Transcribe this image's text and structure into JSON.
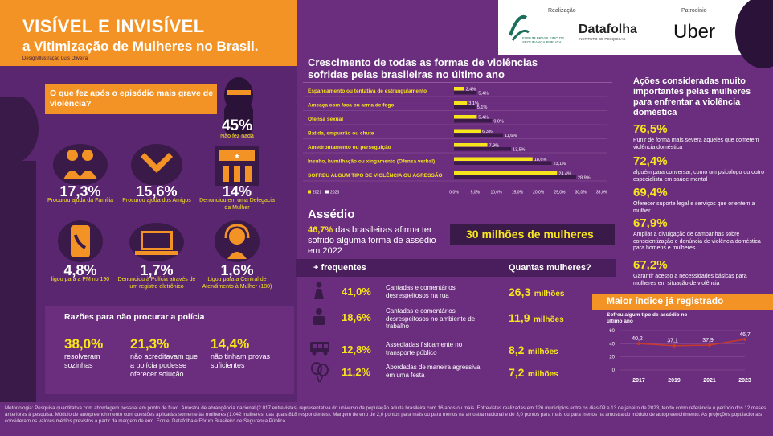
{
  "header": {
    "title1": "VISÍVEL E INVISÍVEL",
    "title2": "a Vitimização de Mulheres no Brasil.",
    "credit": "Design/Ilustração Luis Oliveira"
  },
  "logos": {
    "realizacao_label": "Realização",
    "fbsp_name": "FÓRUM BRASILEIRO DE SEGURANÇA PÚBLICA",
    "datafolha": "Datafolha",
    "datafolha_sub": "INSTITUTO DE PESQUISAS",
    "patrocinio_label": "Patrocínio",
    "uber": "Uber"
  },
  "question": {
    "text": "O que fez após o episódio mais grave de violência?",
    "nada_pct": "45%",
    "nada_label": "Não fez nada",
    "items": [
      {
        "pct": "17,3%",
        "label": "Procurou ajuda da Família"
      },
      {
        "pct": "15,6%",
        "label": "Procurou ajuda dos Amigos"
      },
      {
        "pct": "14%",
        "label": "Denunciou em uma Delegacia da Mulher"
      },
      {
        "pct": "4,8%",
        "label": "ligou para a PM no 190"
      },
      {
        "pct": "1,7%",
        "label": "Denunciou à Polícia através de um registro eletrônico"
      },
      {
        "pct": "1,6%",
        "label": "Ligou para a Central de Atendimento à Mulher (180)"
      }
    ]
  },
  "razoes": {
    "title": "Razões para não procurar a polícia",
    "items": [
      {
        "pct": "38,0%",
        "text": "resolveram sozinhas"
      },
      {
        "pct": "21,3%",
        "text": "não acreditavam que a polícia pudesse oferecer solução"
      },
      {
        "pct": "14,4%",
        "text": "não tinham provas suficientes"
      }
    ]
  },
  "chart_data": [
    {
      "type": "bar",
      "orientation": "horizontal",
      "title": "Crescimento de todas as formas de violências sofridas pelas brasileiras no último ano",
      "categories": [
        "Espancamento ou tentativa de estrangulamento",
        "Ameaça com faca ou arma de fogo",
        "Ofensa sexual",
        "Batida, empurrão ou chute",
        "Amedrontamento ou perseguição",
        "Insulto, humilhação ou xingamento (Ofensa verbal)",
        "SOFREU ALGUM TIPO DE VIOLÊNCIA OU AGRESSÃO"
      ],
      "series": [
        {
          "name": "2021",
          "values": [
            2.4,
            3.1,
            5.4,
            6.3,
            7.9,
            18.6,
            24.4
          ],
          "labels": [
            "2,4%",
            "3,1%",
            "5,4%",
            "6,3%",
            "7,9%",
            "18,6%",
            "24,4%"
          ]
        },
        {
          "name": "2023",
          "values": [
            5.4,
            5.1,
            9.0,
            11.6,
            13.5,
            23.1,
            28.9
          ],
          "labels": [
            "5,4%",
            "5,1%",
            "9,0%",
            "11,6%",
            "13,5%",
            "23,1%",
            "28,9%"
          ]
        }
      ],
      "xlim": [
        0,
        35
      ],
      "ticks": [
        "0,0%",
        "5,0%",
        "10,0%",
        "15,0%",
        "20,0%",
        "25,0%",
        "30,0%",
        "35,0%"
      ],
      "colors": {
        "2021": "#f6e41c",
        "2023": "#3a1a48"
      }
    },
    {
      "type": "line",
      "title": "Maior índice já registrado",
      "subtitle": "Sofreu algum tipo de assédio no último ano",
      "x": [
        "2017",
        "2019",
        "2021",
        "2023"
      ],
      "values": [
        40.2,
        37.1,
        37.9,
        46.7
      ],
      "labels": [
        "40,2",
        "37,1",
        "37,9",
        "46,7"
      ],
      "ylim": [
        0,
        60
      ],
      "yticks": [
        "0",
        "20",
        "40",
        "60"
      ]
    }
  ],
  "assedio": {
    "title": "Assédio",
    "highlight": "46,7%",
    "text": " das brasileiras afirma ter sofrido alguma forma de assédio em 2022",
    "banner": "30 milhões de mulheres",
    "freq_label": "+ frequentes",
    "quantas_label": "Quantas mulheres?",
    "rows": [
      {
        "pct": "41,0%",
        "text": "Cantadas e comentários desrespeitosos na rua",
        "qty": "26,3",
        "unit": "milhões"
      },
      {
        "pct": "18,6%",
        "text": "Cantadas e comentários desrespeitosos no ambiente de trabalho",
        "qty": "11,9",
        "unit": "milhões"
      },
      {
        "pct": "12,8%",
        "text": "Assediadas fisicamente no transporte público",
        "qty": "8,2",
        "unit": "milhões"
      },
      {
        "pct": "11,2%",
        "text": "Abordadas de maneira agressiva em uma festa",
        "qty": "7,2",
        "unit": "milhões"
      }
    ]
  },
  "acoes": {
    "title": "Ações consideradas muito importantes pelas mulheres para enfrentar a violência doméstica",
    "items": [
      {
        "pct": "76,5%",
        "text": "Punir de forma mais severa aqueles que cometem violência doméstica"
      },
      {
        "pct": "72,4%",
        "text": "alguém para conversar, como um psicólogo ou outro especialista em saúde mental"
      },
      {
        "pct": "69,4%",
        "text": "Oferecer suporte legal e serviços que orientem a mulher"
      },
      {
        "pct": "67,9%",
        "text": "Ampliar a divulgação de campanhas sobre conscientização e denúncia de violência doméstica para homens e mulheres"
      },
      {
        "pct": "67,2%",
        "text": "Garantir acesso a necessidades básicas para mulheres em situação de violência"
      }
    ]
  },
  "footer": {
    "text": "Metodologia: Pesquisa quantitativa com abordagem pessoal em ponto de fluxo. Amostra de abrangência nacional (2.017 entrevistas) representativa do universo da população adulta brasileira com 16 anos ou mais. Entrevistas realizadas em 126 municípios entre os dias 09 e 13 de janeiro de 2023, tendo como referência o período dos 12 meses anteriores à pesquisa. Módulo de autopreenchimento com questões aplicadas somente às mulheres (1.042 mulheres, das quais 818 respondentes). Margem de erro de 2,0 pontos para mais ou para menos na amostra nacional e de 3,0 pontos para mais ou para menos na amostra do módulo de autopreenchimento. As projeções populacionais consideram os valores médios previstos a partir da margem de erro. Fonte: Datafolha e Fórum Brasileiro de Segurança Pública."
  }
}
